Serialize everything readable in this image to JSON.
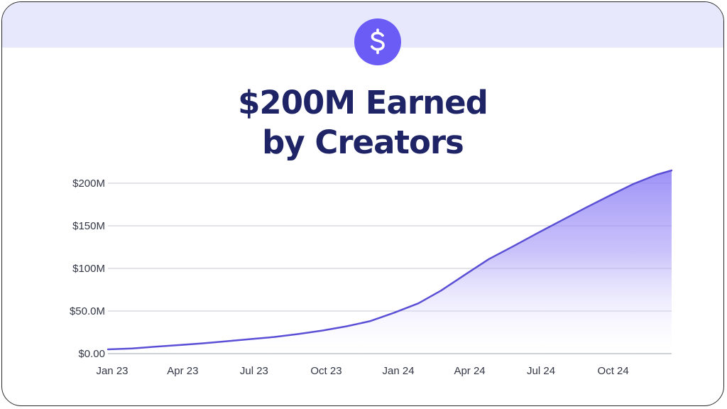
{
  "header": {
    "icon": "dollar-sign-icon",
    "accent_color": "#6a5cf5",
    "band_color": "#e8e8fd"
  },
  "title": {
    "line1": "$200M Earned",
    "line2": "by Creators"
  },
  "chart_data": {
    "type": "area",
    "title": "$200M Earned by Creators",
    "xlabel": "",
    "ylabel": "",
    "x_tick_labels": [
      "Jan 23",
      "Apr 23",
      "Jul 23",
      "Oct 23",
      "Jan 24",
      "Apr 24",
      "Jul 24",
      "Oct 24"
    ],
    "y_tick_labels": [
      "$0.00",
      "$50.0M",
      "$100M",
      "$150M",
      "$200M"
    ],
    "y_ticks": [
      0,
      50,
      100,
      150,
      200
    ],
    "ylim": [
      0,
      215
    ],
    "xlim": [
      "2023-01-01",
      "2024-12-20"
    ],
    "y_unit": "$M",
    "grid": true,
    "line_color": "#5b4fd6",
    "fill_color": "#8d7ff5",
    "series": [
      {
        "points": [
          [
            "2023-01-01",
            5
          ],
          [
            "2023-02-01",
            6
          ],
          [
            "2023-03-01",
            8
          ],
          [
            "2023-04-01",
            10
          ],
          [
            "2023-05-01",
            12
          ],
          [
            "2023-06-01",
            14.5
          ],
          [
            "2023-07-01",
            17
          ],
          [
            "2023-08-01",
            19.5
          ],
          [
            "2023-09-01",
            23
          ],
          [
            "2023-10-01",
            27
          ],
          [
            "2023-11-01",
            32
          ],
          [
            "2023-12-01",
            38
          ],
          [
            "2024-01-01",
            48
          ],
          [
            "2024-02-01",
            59
          ],
          [
            "2024-03-01",
            74
          ],
          [
            "2024-04-01",
            93
          ],
          [
            "2024-05-01",
            111
          ],
          [
            "2024-06-01",
            126
          ],
          [
            "2024-07-01",
            141
          ],
          [
            "2024-08-01",
            156
          ],
          [
            "2024-09-01",
            171
          ],
          [
            "2024-10-01",
            185
          ],
          [
            "2024-11-01",
            199
          ],
          [
            "2024-12-01",
            210
          ],
          [
            "2024-12-20",
            215
          ]
        ]
      }
    ]
  }
}
